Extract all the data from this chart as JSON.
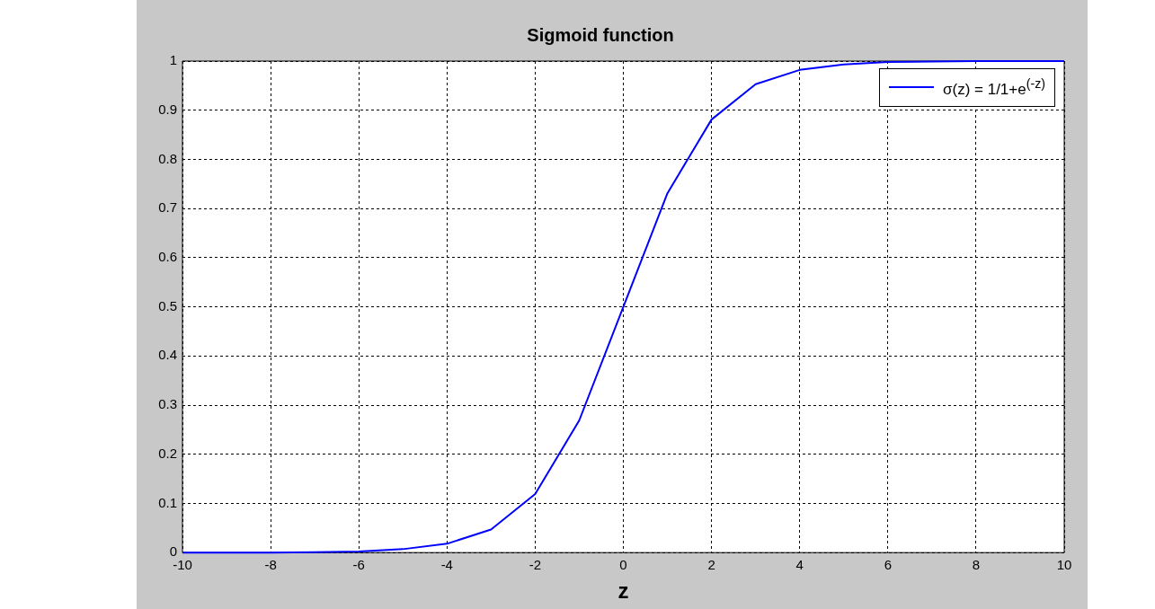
{
  "chart_data": {
    "type": "line",
    "title": "Sigmoid function",
    "xlabel": "z",
    "x": [
      -10,
      -9,
      -8,
      -7,
      -6,
      -5,
      -4,
      -3,
      -2,
      -1,
      0,
      1,
      2,
      3,
      4,
      5,
      6,
      7,
      8,
      9,
      10
    ],
    "series": [
      {
        "name": "σ(z) = 1/1+e$^{(-z)}$",
        "color": "#0000ff",
        "values": [
          0.0,
          0.0,
          0.0,
          0.001,
          0.002,
          0.007,
          0.018,
          0.047,
          0.119,
          0.269,
          0.5,
          0.731,
          0.881,
          0.953,
          0.982,
          0.993,
          0.998,
          0.999,
          1.0,
          1.0,
          1.0
        ]
      }
    ],
    "xlim": [
      -10,
      10
    ],
    "xticks": [
      -10,
      -8,
      -6,
      -4,
      -2,
      0,
      2,
      4,
      6,
      8,
      10
    ],
    "ylim": [
      0,
      1
    ],
    "yticks": [
      0,
      0.1,
      0.2,
      0.3,
      0.4,
      0.5,
      0.6,
      0.7,
      0.8,
      0.9,
      1
    ],
    "grid": true,
    "legend": "top right",
    "marker": "none",
    "line_style": "solid"
  }
}
